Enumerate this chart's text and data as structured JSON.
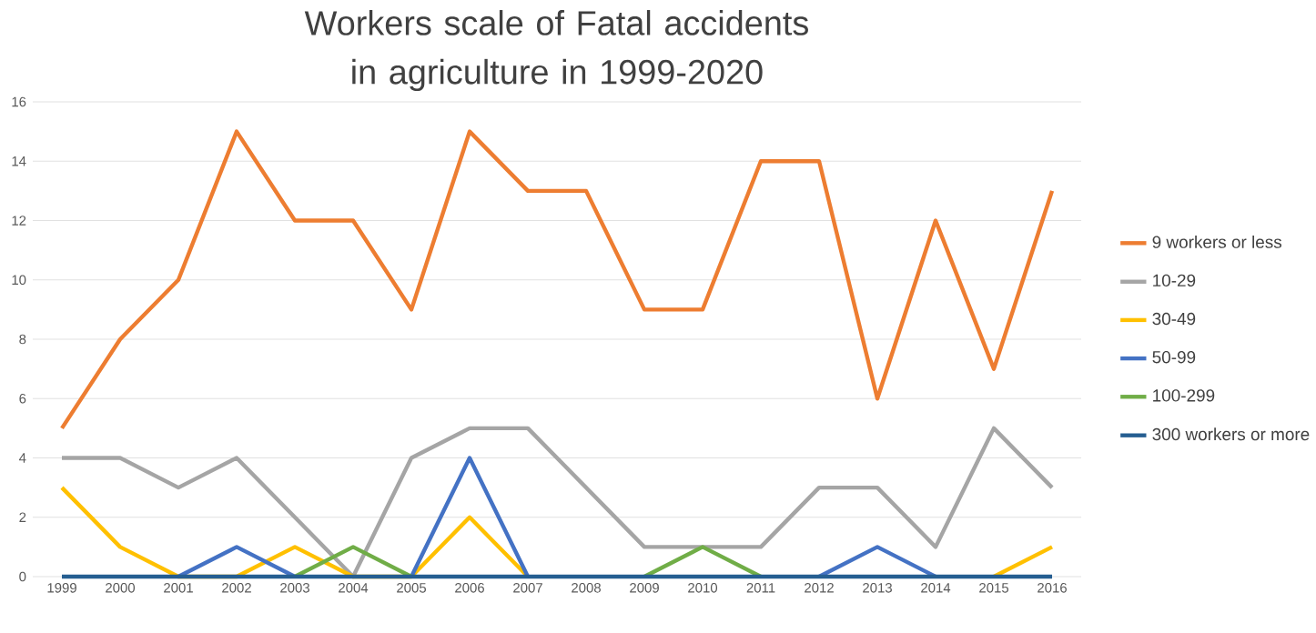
{
  "chart_data": {
    "type": "line",
    "title": "Workers scale of Fatal accidents in agriculture in 1999-2020",
    "categories": [
      "1999",
      "2000",
      "2001",
      "2002",
      "2003",
      "2004",
      "2005",
      "2006",
      "2007",
      "2008",
      "2009",
      "2010",
      "2011",
      "2012",
      "2013",
      "2014",
      "2015",
      "2016"
    ],
    "series": [
      {
        "name": "9 workers or less",
        "color": "#ed7d31",
        "values": [
          5,
          8,
          10,
          15,
          12,
          12,
          9,
          15,
          13,
          13,
          9,
          9,
          14,
          14,
          6,
          12,
          7,
          13
        ]
      },
      {
        "name": "10-29",
        "color": "#a5a5a5",
        "values": [
          4,
          4,
          3,
          4,
          2,
          0,
          4,
          5,
          5,
          3,
          1,
          1,
          1,
          3,
          3,
          1,
          5,
          3
        ]
      },
      {
        "name": "30-49",
        "color": "#ffc000",
        "values": [
          3,
          1,
          0,
          0,
          1,
          0,
          0,
          2,
          0,
          null,
          null,
          null,
          null,
          null,
          null,
          null,
          0,
          1
        ]
      },
      {
        "name": "50-99",
        "color": "#4472c4",
        "values": [
          null,
          null,
          0,
          1,
          0,
          null,
          0,
          4,
          0,
          null,
          null,
          null,
          null,
          0,
          1,
          0,
          null,
          null
        ]
      },
      {
        "name": "100-299",
        "color": "#70ad47",
        "values": [
          null,
          null,
          null,
          null,
          0,
          1,
          0,
          null,
          null,
          null,
          0,
          1,
          0,
          null,
          null,
          null,
          null,
          null
        ]
      },
      {
        "name": "300 workers or more",
        "color": "#255e91",
        "values": [
          0,
          0,
          0,
          0,
          0,
          0,
          0,
          0,
          0,
          0,
          0,
          0,
          0,
          0,
          0,
          0,
          0,
          0
        ]
      }
    ],
    "ylim": [
      0,
      16
    ],
    "yticks": [
      0,
      2,
      4,
      6,
      8,
      10,
      12,
      14,
      16
    ],
    "grid": "y",
    "legend": "right",
    "marker": "none",
    "line_style": "solid"
  }
}
